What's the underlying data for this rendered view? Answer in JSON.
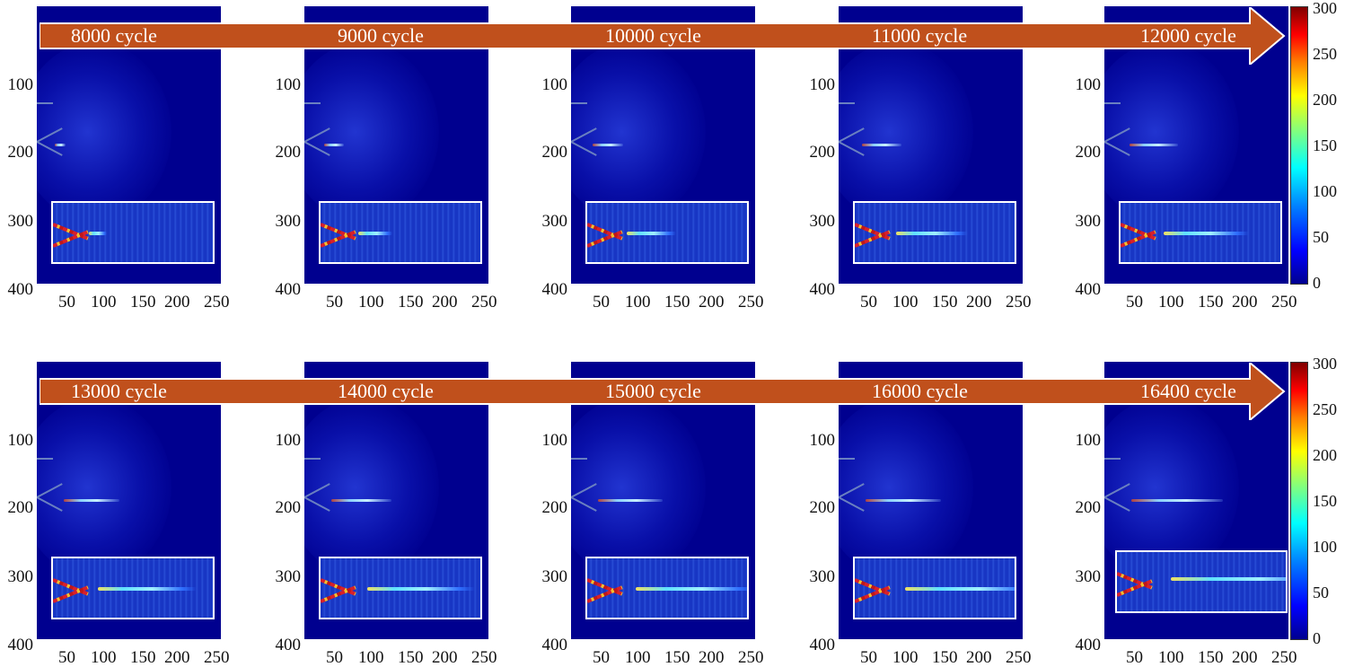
{
  "rows": [
    {
      "labels": [
        "8000 cycle",
        "9000 cycle",
        "10000 cycle",
        "11000 cycle",
        "12000 cycle"
      ]
    },
    {
      "labels": [
        "13000 cycle",
        "14000 cycle",
        "15000 cycle",
        "16000 cycle",
        "16400 cycle"
      ]
    }
  ],
  "axes": {
    "y_ticks": [
      "100",
      "200",
      "300",
      "400"
    ],
    "x_ticks": [
      "50",
      "100",
      "150",
      "200",
      "250"
    ]
  },
  "colorbar": {
    "ticks": [
      "300",
      "250",
      "200",
      "150",
      "100",
      "50",
      "0"
    ],
    "range": [
      0,
      300
    ],
    "colormap": "jet"
  },
  "colors": {
    "arrow": "#c0501c",
    "panel_background": "#00008f",
    "inset_border": "#ffffff"
  }
}
